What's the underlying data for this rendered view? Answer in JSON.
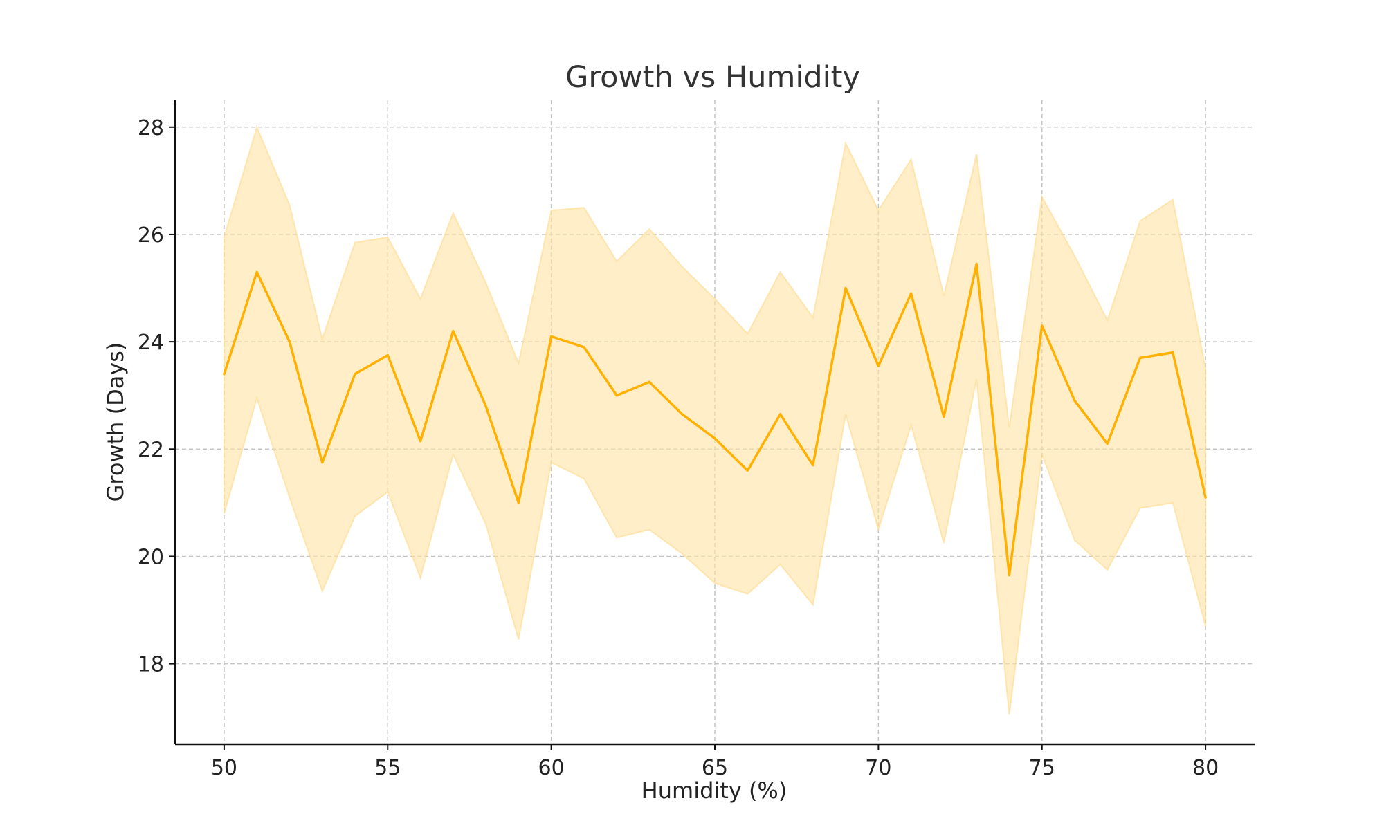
{
  "chart_data": {
    "type": "line",
    "title": "Growth vs Humidity",
    "xlabel": "Humidity (%)",
    "ylabel": "Growth (Days)",
    "xlim": [
      48.5,
      81.5
    ],
    "ylim": [
      16.5,
      28.5
    ],
    "xticks": [
      50,
      55,
      60,
      65,
      70,
      75,
      80
    ],
    "yticks": [
      18,
      20,
      22,
      24,
      26,
      28
    ],
    "grid": true,
    "series": [
      {
        "x": [
          50,
          51,
          52,
          53,
          54,
          55,
          56,
          57,
          58,
          59,
          60,
          61,
          62,
          63,
          64,
          65,
          66,
          67,
          68,
          69,
          70,
          71,
          72,
          73,
          74,
          75,
          76,
          77,
          78,
          79,
          80
        ],
        "values": [
          23.4,
          25.3,
          24.0,
          21.75,
          23.4,
          23.75,
          22.15,
          24.2,
          22.8,
          21.0,
          24.1,
          23.9,
          23.0,
          23.25,
          22.65,
          22.2,
          21.6,
          22.65,
          21.7,
          25.0,
          23.55,
          24.9,
          22.6,
          25.45,
          19.65,
          24.3,
          22.9,
          22.1,
          23.7,
          23.8,
          21.1
        ],
        "lower": [
          20.8,
          22.95,
          21.1,
          19.35,
          20.75,
          21.2,
          19.6,
          21.9,
          20.6,
          18.45,
          21.75,
          21.45,
          20.35,
          20.5,
          20.05,
          19.5,
          19.3,
          19.85,
          19.1,
          22.65,
          20.5,
          22.45,
          20.25,
          23.3,
          17.05,
          21.9,
          20.3,
          19.75,
          20.9,
          21.0,
          18.7
        ],
        "upper": [
          25.95,
          28.0,
          26.55,
          24.05,
          25.85,
          25.95,
          24.8,
          26.4,
          25.1,
          23.6,
          26.45,
          26.5,
          25.5,
          26.1,
          25.4,
          24.8,
          24.15,
          25.3,
          24.45,
          27.7,
          26.45,
          27.4,
          24.85,
          27.5,
          22.4,
          26.7,
          25.6,
          24.4,
          26.25,
          26.65,
          23.5
        ]
      }
    ],
    "colors": {
      "line": "#FFB000",
      "band": "#FFE3A3",
      "band_edge": "#FFD98A"
    }
  }
}
